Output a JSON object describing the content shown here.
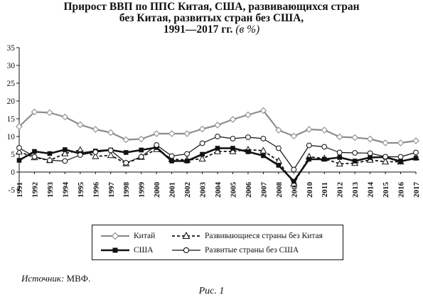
{
  "title_lines": [
    "Прирост ВВП по ППС Китая, США, развивающихся стран",
    "без Китая, развитых стран без США,",
    "1991—2017 гг."
  ],
  "title_unit": "(в %)",
  "source_label": "Источник:",
  "source_value": "МВФ.",
  "figure_label": "Рис. 1",
  "chart_data": {
    "type": "line",
    "x": [
      "1991",
      "1992",
      "1993",
      "1994",
      "1995",
      "1996",
      "1997",
      "1998",
      "1999",
      "2000",
      "2001",
      "2002",
      "2003",
      "2004",
      "2005",
      "2006",
      "2007",
      "2008",
      "2009",
      "2010",
      "2011",
      "2012",
      "2013",
      "2014",
      "2015",
      "2016",
      "2017"
    ],
    "ylim": [
      -5,
      35
    ],
    "yticks": [
      -5,
      0,
      5,
      10,
      15,
      20,
      25,
      30,
      35
    ],
    "grid": false,
    "legend_position": "bottom",
    "series": [
      {
        "name": "Китай",
        "marker": "diamond",
        "dash": "solid",
        "color": "#8c8c8c",
        "values": [
          12.8,
          16.9,
          16.7,
          15.5,
          13.3,
          12.0,
          11.1,
          9.1,
          9.3,
          10.8,
          10.8,
          10.8,
          12.1,
          13.2,
          14.8,
          16.1,
          17.3,
          11.8,
          10.1,
          12.0,
          11.8,
          9.9,
          9.7,
          9.3,
          8.2,
          8.2,
          8.8
        ]
      },
      {
        "name": "Развивающиеся страны без Китая",
        "marker": "triangle",
        "dash": "dashed",
        "color": "#111111",
        "values": [
          5.7,
          4.1,
          3.3,
          5.2,
          6.2,
          4.4,
          4.7,
          2.4,
          4.2,
          6.4,
          3.6,
          3.4,
          3.7,
          5.8,
          5.8,
          6.3,
          6.0,
          3.1,
          -3.3,
          4.3,
          3.8,
          2.3,
          2.5,
          3.4,
          2.9,
          2.9,
          4.1
        ]
      },
      {
        "name": "США",
        "marker": "square",
        "dash": "solid",
        "color": "#111111",
        "values": [
          3.3,
          5.8,
          5.2,
          6.3,
          5.2,
          5.9,
          6.2,
          5.5,
          6.2,
          6.9,
          3.1,
          3.1,
          5.0,
          6.7,
          6.7,
          5.7,
          4.6,
          1.9,
          -2.6,
          3.6,
          3.6,
          4.1,
          3.1,
          4.1,
          4.2,
          3.0,
          3.9
        ]
      },
      {
        "name": "Развитые страны без США",
        "marker": "circle",
        "dash": "solid",
        "color": "#111111",
        "values": [
          6.8,
          4.3,
          3.3,
          3.1,
          4.8,
          5.6,
          6.1,
          2.6,
          4.3,
          7.6,
          4.5,
          5.1,
          8.1,
          10.0,
          9.4,
          9.8,
          9.4,
          6.7,
          0.7,
          7.5,
          7.1,
          5.5,
          5.4,
          5.3,
          4.3,
          4.3,
          5.5
        ]
      }
    ]
  },
  "legend_items": [
    {
      "label": "Китай"
    },
    {
      "label": "Развивающиеся страны без Китая"
    },
    {
      "label": "США"
    },
    {
      "label": "Развитые страны без США"
    }
  ]
}
